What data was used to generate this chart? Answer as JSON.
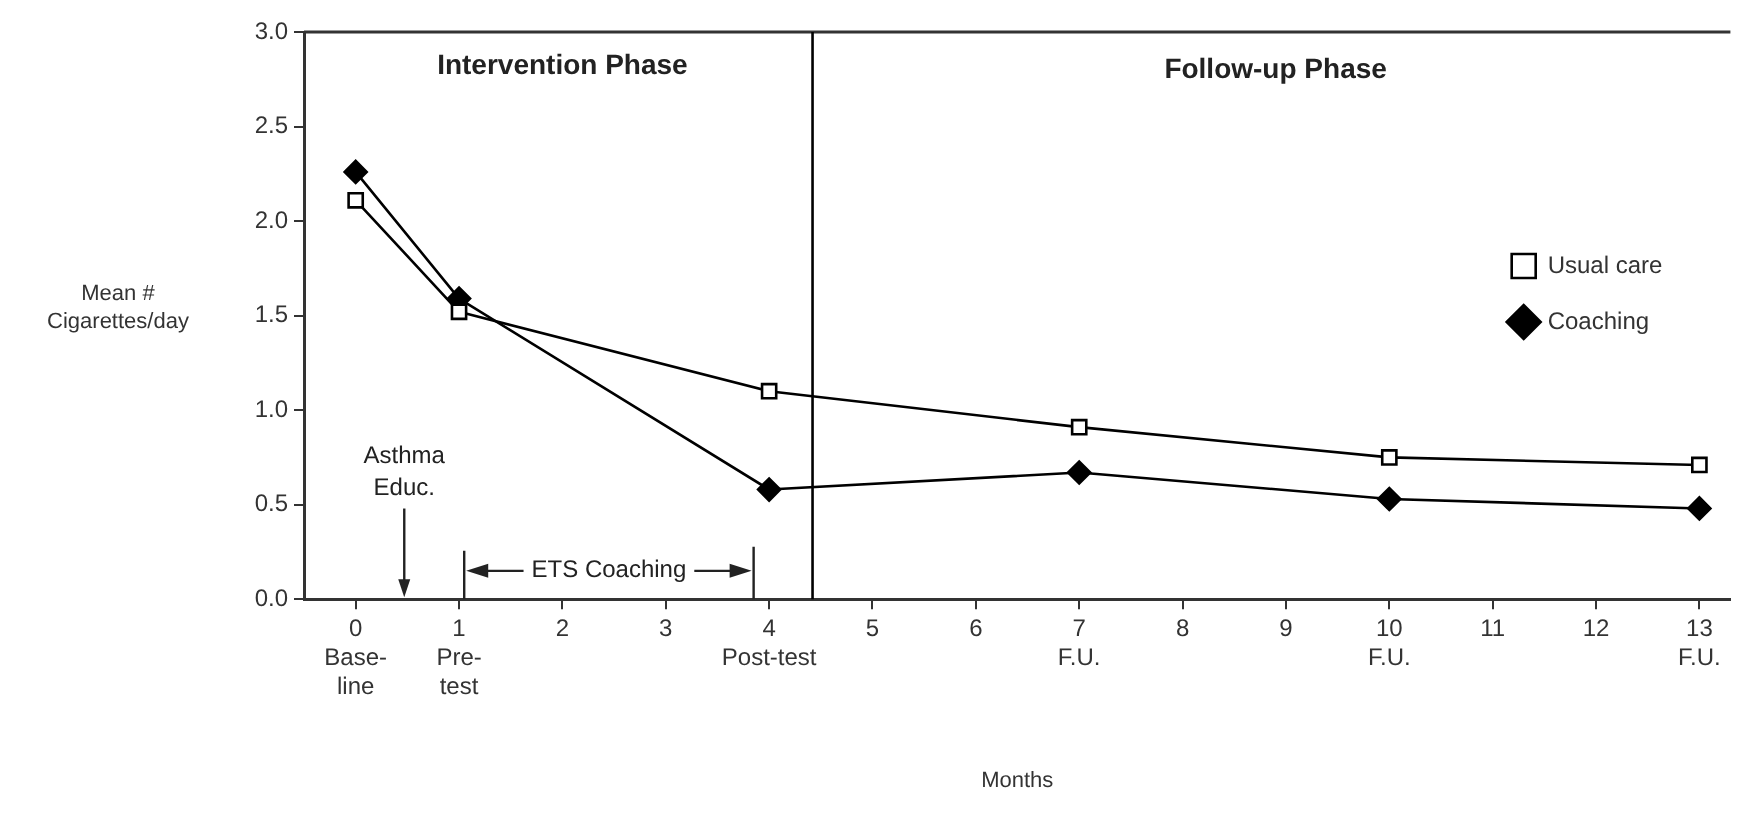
{
  "chart_data": {
    "type": "line",
    "xlabel": "Months",
    "ylabel": "Mean #\nCigarettes/day",
    "x": [
      0,
      1,
      4,
      7,
      10,
      13
    ],
    "series": [
      {
        "name": "Usual care",
        "color": "#000000",
        "marker": "square",
        "values": [
          2.11,
          1.52,
          1.1,
          0.91,
          0.75,
          0.71
        ]
      },
      {
        "name": "Coaching",
        "color": "#000000",
        "marker": "diamond",
        "values": [
          2.26,
          1.59,
          0.58,
          0.67,
          0.53,
          0.48
        ]
      }
    ],
    "xlim": [
      -0.5,
      13.3
    ],
    "ylim": [
      0,
      3
    ],
    "xticks": [
      {
        "value": 0,
        "label": "0\nBase-\nline"
      },
      {
        "value": 1,
        "label": "1\nPre-\ntest"
      },
      2,
      3,
      {
        "value": 4,
        "label": "4\nPost-test"
      },
      5,
      6,
      {
        "value": 7,
        "label": "7\nF.U."
      },
      8,
      9,
      {
        "value": 10,
        "label": "10\nF.U."
      },
      11,
      12,
      {
        "value": 13,
        "label": "13\nF.U."
      }
    ],
    "yticks": [
      {
        "value": 0,
        "label": "0.0"
      },
      {
        "value": 0.5,
        "label": "0.5"
      },
      {
        "value": 1,
        "label": "1.0"
      },
      {
        "value": 1.5,
        "label": "1.5"
      },
      {
        "value": 2,
        "label": "2.0"
      },
      {
        "value": 2.5,
        "label": "2.5"
      },
      {
        "value": 3,
        "label": "3.0"
      }
    ],
    "ref_lines": [
      {
        "axis": "x",
        "value": 4.42,
        "color": "#000000"
      }
    ],
    "annotations": [
      "Intervention Phase",
      "Follow-up Phase",
      "Asthma Educ.",
      "ETS Coaching"
    ],
    "grid": false,
    "legend": "top right",
    "line_style": "solid"
  }
}
